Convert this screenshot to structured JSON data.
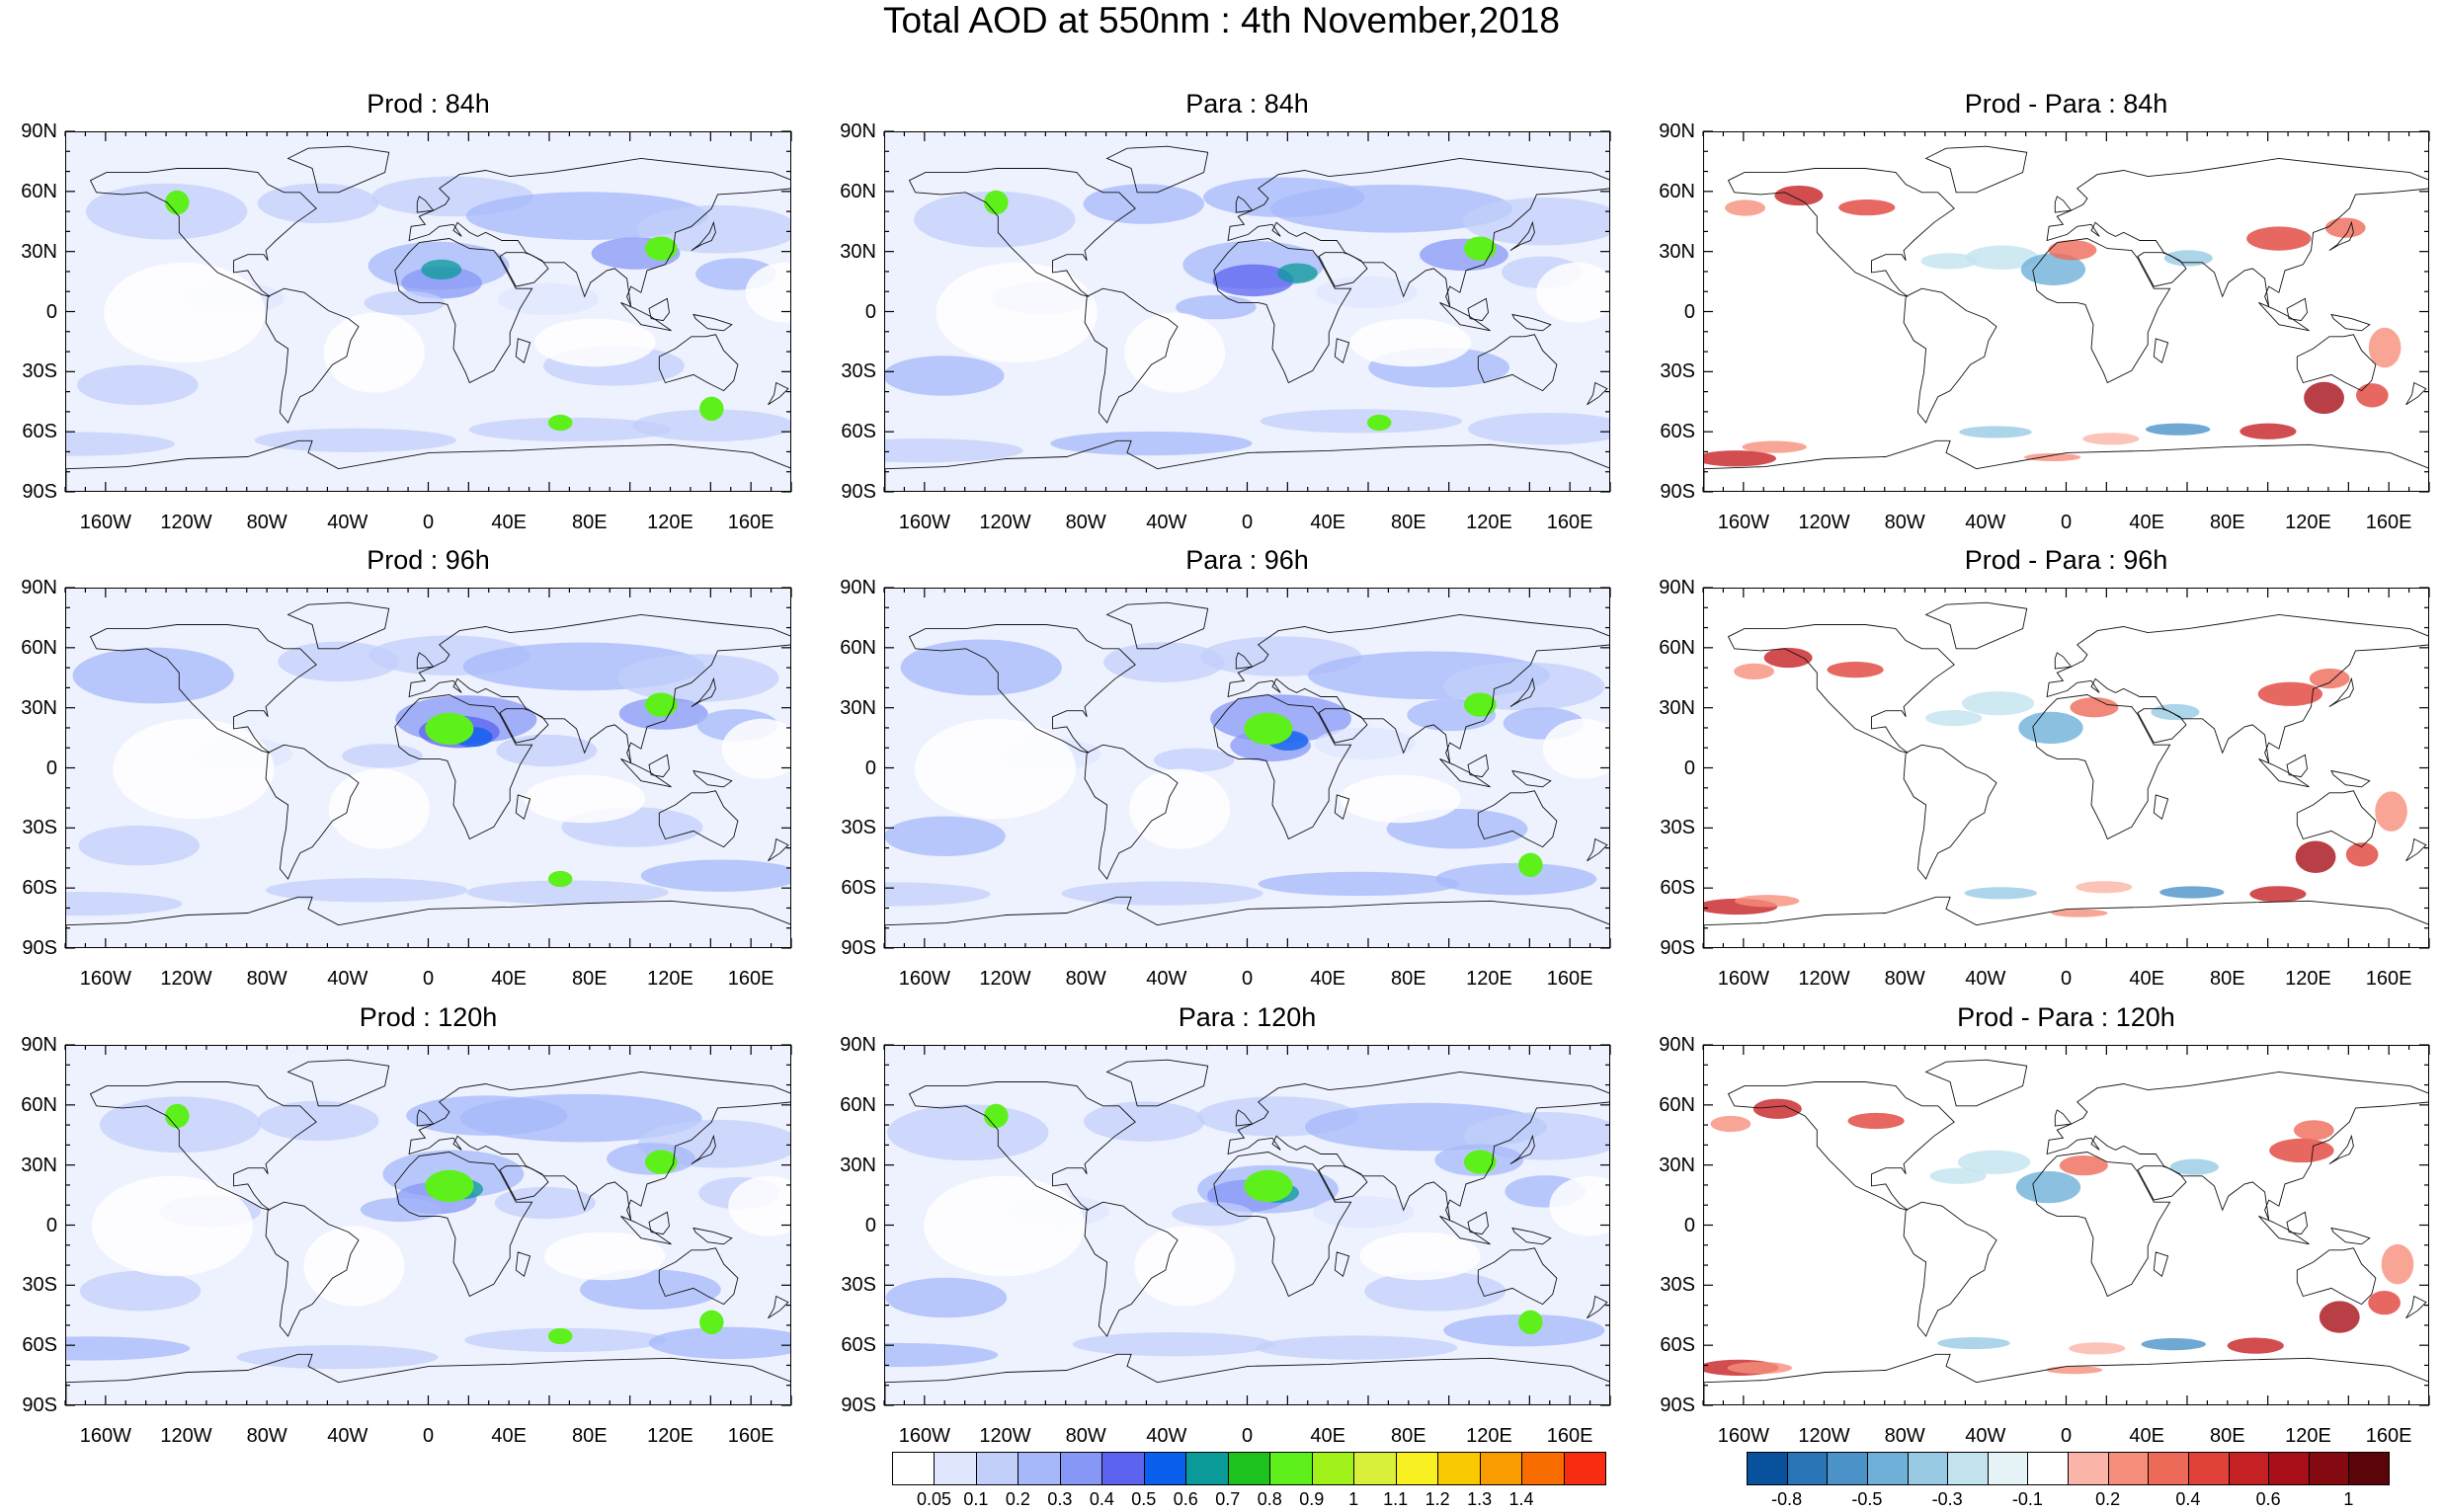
{
  "title": "Total AOD at 550nm : 4th November,2018",
  "panels": [
    {
      "title": "Prod : 84h",
      "kind": "aod"
    },
    {
      "title": "Para : 84h",
      "kind": "aod"
    },
    {
      "title": "Prod - Para : 84h",
      "kind": "diff"
    },
    {
      "title": "Prod : 96h",
      "kind": "aod"
    },
    {
      "title": "Para : 96h",
      "kind": "aod"
    },
    {
      "title": "Prod - Para : 96h",
      "kind": "diff"
    },
    {
      "title": "Prod : 120h",
      "kind": "aod"
    },
    {
      "title": "Para : 120h",
      "kind": "aod"
    },
    {
      "title": "Prod - Para : 120h",
      "kind": "diff"
    }
  ],
  "lat_labels": [
    "90N",
    "60N",
    "30N",
    "0",
    "30S",
    "60S",
    "90S"
  ],
  "lon_labels": [
    "160W",
    "120W",
    "80W",
    "40W",
    "0",
    "40E",
    "80E",
    "120E",
    "160E"
  ],
  "aod_colorbar": {
    "labels": [
      "0.05",
      "0.1",
      "0.2",
      "0.3",
      "0.4",
      "0.5",
      "0.6",
      "0.7",
      "0.8",
      "0.9",
      "1",
      "1.1",
      "1.2",
      "1.3",
      "1.4"
    ],
    "colors": [
      "#ffffff",
      "#dfe6fd",
      "#c2cffb",
      "#a6b8f9",
      "#8797f5",
      "#5c63ef",
      "#0a5fee",
      "#0a9a9a",
      "#1ec21e",
      "#5ef01a",
      "#a0f01a",
      "#d8f03a",
      "#f8f020",
      "#f8c800",
      "#f89c00",
      "#f86c00",
      "#f82c10"
    ]
  },
  "diff_colorbar": {
    "labels": [
      "-0.8",
      "-0.5",
      "-0.3",
      "-0.1",
      "0.2",
      "0.4",
      "0.6",
      "1"
    ],
    "colors": [
      "#08519c",
      "#2a74b8",
      "#4a92c8",
      "#6fb0d8",
      "#98cbe3",
      "#c3e3ef",
      "#e6f4f8",
      "#ffffff",
      "#fbb5a8",
      "#f68e7c",
      "#ee6a58",
      "#e0423a",
      "#c52124",
      "#a80f18",
      "#820a10",
      "#5c0508"
    ]
  }
}
